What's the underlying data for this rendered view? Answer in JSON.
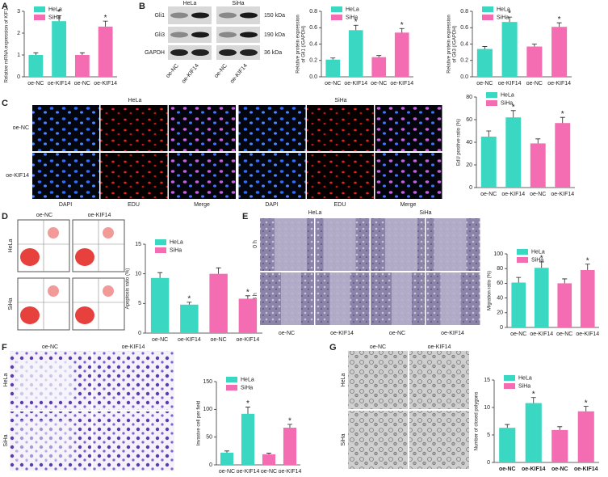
{
  "panel_labels": [
    "A",
    "B",
    "C",
    "D",
    "E",
    "F",
    "G"
  ],
  "blot": {
    "cell_lines": [
      "HeLa",
      "SiHa"
    ],
    "proteins": [
      "Gli1",
      "Gli3",
      "GAPDH"
    ],
    "sizes": [
      "150 kDa",
      "190 kDa",
      "36 kDa"
    ],
    "lanes": [
      "oe-NC",
      "oe-KIF14",
      "oe-NC",
      "oe-KIF14"
    ]
  },
  "edu": {
    "cell_lines": [
      "HeLa",
      "SiHa"
    ],
    "rows": [
      "oe-NC",
      "oe-KIF14"
    ],
    "columns": [
      "DAPI",
      "EDU",
      "Merge",
      "DAPI",
      "EDU",
      "Merge"
    ]
  },
  "flow": {
    "columns": [
      "oe-NC",
      "oe-KIF14"
    ],
    "rows": [
      "HeLa",
      "SiHa"
    ]
  },
  "wound": {
    "cell_lines": [
      "HeLa",
      "SiHa"
    ],
    "rows": [
      "0 h",
      "48 h"
    ],
    "columns": [
      "oe-NC",
      "oe-KIF14",
      "oe-NC",
      "oe-KIF14"
    ]
  },
  "transwell": {
    "columns": [
      "oe-NC",
      "oe-KIF14"
    ],
    "rows": [
      "HeLa",
      "SiHa"
    ]
  },
  "polygon": {
    "columns": [
      "oe-NC",
      "oe-KIF14"
    ],
    "rows": [
      "HeLa",
      "SiHa"
    ]
  },
  "chart_data": [
    {
      "type": "bar",
      "y_label": "Relative mRNA expression of KIF14",
      "categories": [
        "oe-NC",
        "oe-KIF14",
        "oe-NC",
        "oe-KIF14"
      ],
      "ylim": [
        0,
        3
      ],
      "yticks": [
        0,
        1,
        2,
        3
      ],
      "annotations": [
        null,
        "*",
        null,
        "*"
      ],
      "series": [
        {
          "name": "HeLa",
          "color": "#3ad8c2",
          "values": [
            1.0,
            2.55,
            null,
            null
          ],
          "errors": [
            0.1,
            0.25,
            null,
            null
          ]
        },
        {
          "name": "SiHa",
          "color": "#f46db2",
          "values": [
            null,
            null,
            1.0,
            2.3
          ],
          "errors": [
            null,
            null,
            0.1,
            0.25
          ]
        }
      ]
    },
    {
      "type": "bar",
      "y_label": [
        "Relative protein expression",
        "of Gli1 (/GAPDH)"
      ],
      "categories": [
        "oe-NC",
        "oe-KIF14",
        "oe-NC",
        "oe-KIF14"
      ],
      "ylim": [
        0,
        0.8
      ],
      "yticks": [
        {
          "value": 0,
          "label": "0.0"
        },
        0.2,
        0.4,
        0.6,
        0.8
      ],
      "annotations": [
        null,
        "*",
        null,
        "*"
      ],
      "series": [
        {
          "name": "HeLa",
          "color": "#3ad8c2",
          "values": [
            0.21,
            0.57,
            null,
            null
          ],
          "errors": [
            0.02,
            0.06,
            null,
            null
          ]
        },
        {
          "name": "SiHa",
          "color": "#f46db2",
          "values": [
            null,
            null,
            0.24,
            0.54
          ],
          "errors": [
            null,
            null,
            0.02,
            0.05
          ]
        }
      ]
    },
    {
      "type": "bar",
      "y_label": [
        "Relative protein expression",
        "of Gli3 (/GAPDH)"
      ],
      "categories": [
        "oe-NC",
        "oe-KIF14",
        "oe-NC",
        "oe-KIF14"
      ],
      "ylim": [
        0,
        0.8
      ],
      "yticks": [
        {
          "value": 0,
          "label": "0.0"
        },
        0.2,
        0.4,
        0.6,
        0.8
      ],
      "annotations": [
        null,
        "*",
        null,
        "*"
      ],
      "series": [
        {
          "name": "HeLa",
          "color": "#3ad8c2",
          "values": [
            0.34,
            0.67,
            null,
            null
          ],
          "errors": [
            0.03,
            0.06,
            null,
            null
          ]
        },
        {
          "name": "SiHa",
          "color": "#f46db2",
          "values": [
            null,
            null,
            0.37,
            0.61
          ],
          "errors": [
            null,
            null,
            0.03,
            0.05
          ]
        }
      ]
    },
    {
      "type": "bar",
      "y_label": "EdU positive ratio (%)",
      "categories": [
        "oe-NC",
        "oe-KIF14",
        "oe-NC",
        "oe-KIF14"
      ],
      "ylim": [
        0,
        80
      ],
      "yticks": [
        0,
        20,
        40,
        60,
        80
      ],
      "annotations": [
        null,
        "*",
        null,
        "*"
      ],
      "series": [
        {
          "name": "HeLa",
          "color": "#3ad8c2",
          "values": [
            45,
            62,
            null,
            null
          ],
          "errors": [
            5,
            6,
            null,
            null
          ]
        },
        {
          "name": "SiHa",
          "color": "#f46db2",
          "values": [
            null,
            null,
            39,
            57
          ],
          "errors": [
            null,
            null,
            4,
            5
          ]
        }
      ]
    },
    {
      "type": "bar",
      "y_label": "Apoptosis ratio (%)",
      "categories": [
        "oe-NC",
        "oe-KIF14",
        "oe-NC",
        "oe-KIF14"
      ],
      "ylim": [
        0,
        15
      ],
      "yticks": [
        0,
        5,
        10,
        15
      ],
      "annotations": [
        null,
        "*",
        null,
        "*"
      ],
      "series": [
        {
          "name": "HeLa",
          "color": "#3ad8c2",
          "values": [
            9.3,
            4.8,
            null,
            null
          ],
          "errors": [
            0.9,
            0.4,
            null,
            null
          ]
        },
        {
          "name": "SiHa",
          "color": "#f46db2",
          "values": [
            null,
            null,
            10,
            5.8
          ],
          "errors": [
            null,
            null,
            1,
            0.5
          ]
        }
      ]
    },
    {
      "type": "bar",
      "y_label": "Migration ratio (%)",
      "categories": [
        "oe-NC",
        "oe-KIF14",
        "oe-NC",
        "oe-KIF14"
      ],
      "ylim": [
        0,
        100
      ],
      "yticks": [
        0,
        20,
        40,
        60,
        80,
        100
      ],
      "annotations": [
        null,
        "*",
        null,
        "*"
      ],
      "series": [
        {
          "name": "HeLa",
          "color": "#3ad8c2",
          "values": [
            61,
            81,
            null,
            null
          ],
          "errors": [
            7,
            8,
            null,
            null
          ]
        },
        {
          "name": "SiHa",
          "color": "#f46db2",
          "values": [
            null,
            null,
            60,
            78
          ],
          "errors": [
            null,
            null,
            6,
            8
          ]
        }
      ]
    },
    {
      "type": "bar",
      "y_label": "Invasive cell per field",
      "categories": [
        "oe-NC",
        "oe-KIF14",
        "oe-NC",
        "oe-KIF14"
      ],
      "ylim": [
        0,
        150
      ],
      "yticks": [
        0,
        50,
        100,
        150
      ],
      "annotations": [
        null,
        "*",
        null,
        "*"
      ],
      "series": [
        {
          "name": "HeLa",
          "color": "#3ad8c2",
          "values": [
            22,
            92,
            null,
            null
          ],
          "errors": [
            3,
            12,
            null,
            null
          ]
        },
        {
          "name": "SiHa",
          "color": "#f46db2",
          "values": [
            null,
            null,
            19,
            67
          ],
          "errors": [
            null,
            null,
            2,
            6
          ]
        }
      ]
    },
    {
      "type": "bar",
      "y_label": "Number of closed polygons",
      "categories": [
        "oe-NC",
        "oe-KIF14",
        "oe-NC",
        "oe-KIF14"
      ],
      "ylim": [
        0,
        15
      ],
      "yticks": [
        0,
        5,
        10,
        15
      ],
      "annotations": [
        null,
        "*",
        null,
        "*"
      ],
      "bold_categories": true,
      "series": [
        {
          "name": "HeLa",
          "color": "#3ad8c2",
          "values": [
            6.3,
            10.8,
            null,
            null
          ],
          "errors": [
            0.6,
            1.0,
            null,
            null
          ]
        },
        {
          "name": "SiHa",
          "color": "#f46db2",
          "values": [
            null,
            null,
            5.9,
            9.3
          ],
          "errors": [
            null,
            null,
            0.6,
            0.9
          ]
        }
      ]
    }
  ]
}
